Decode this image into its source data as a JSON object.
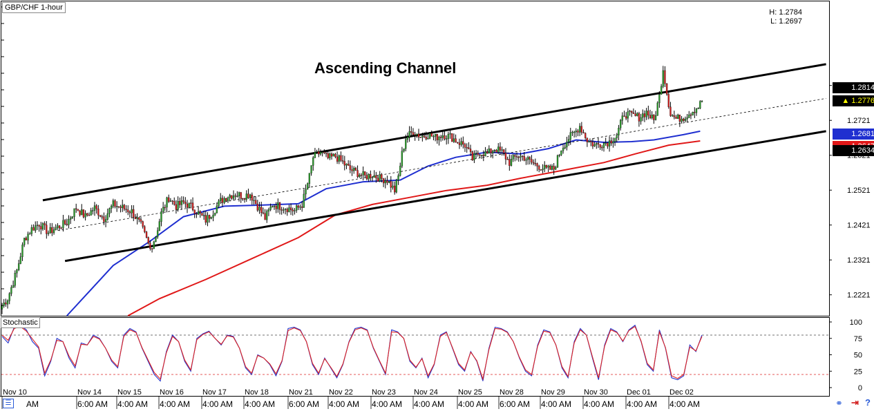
{
  "header": {
    "symbol_label": "GBP/CHF 1-hour",
    "high_label": "H: 1.2784",
    "low_label": "L: 1.2697",
    "annotation": "Ascending Channel"
  },
  "oscillator": {
    "label": "Stochastic"
  },
  "colors": {
    "bull": "#2e9e2e",
    "bear": "#d62020",
    "ma_fast": "#1f2fd0",
    "ma_slow": "#e01818",
    "stoch_k": "#2233cc",
    "stoch_d": "#dd2222",
    "channel": "#000000",
    "current_tag": "#000000"
  },
  "icons": [
    "grid-menu-icon",
    "link-icon",
    "arrow-right-icon",
    "help-icon"
  ],
  "chart_data": [
    {
      "type": "candlestick",
      "title": "GBP/CHF 1-hour",
      "ylim": [
        1.2161,
        1.3062
      ],
      "price_ticks": [
        "1.2221",
        "1.2321",
        "1.2421",
        "1.2521",
        "1.2621",
        "1.2721",
        "1.2821"
      ],
      "price_tags": [
        {
          "label": "1.2814",
          "value": 1.2814,
          "style": "dark"
        },
        {
          "label": "1.2776",
          "value": 1.2776,
          "style": "current"
        },
        {
          "label": "1.2681",
          "value": 1.2681,
          "style": "blue"
        },
        {
          "label": "1.2647",
          "value": 1.2647,
          "style": "red"
        },
        {
          "label": "1.2634",
          "value": 1.2634,
          "style": "dark"
        }
      ],
      "date_labels": [
        "Nov 10",
        "Nov 14",
        "Nov 15",
        "Nov 16",
        "Nov 17",
        "Nov 18",
        "Nov 21",
        "Nov 22",
        "Nov 23",
        "Nov 24",
        "Nov 25",
        "Nov 28",
        "Nov 29",
        "Nov 30",
        "Dec 01",
        "Dec 02"
      ],
      "time_labels": [
        "AM",
        "6:00 AM",
        "4:00 AM",
        "4:00 AM",
        "4:00 AM",
        "4:00 AM",
        "6:00 AM",
        "4:00 AM",
        "4:00 AM",
        "4:00 AM",
        "4:00 AM",
        "6:00 AM",
        "4:00 AM",
        "4:00 AM",
        "4:00 AM",
        "4:00 AM"
      ],
      "price_path": [
        [
          0,
          1.219
        ],
        [
          3,
          1.221
        ],
        [
          8,
          1.229
        ],
        [
          12,
          1.238
        ],
        [
          16,
          1.241
        ],
        [
          20,
          1.2425
        ],
        [
          25,
          1.24
        ],
        [
          30,
          1.2415
        ],
        [
          35,
          1.2428
        ],
        [
          40,
          1.247
        ],
        [
          45,
          1.2445
        ],
        [
          50,
          1.247
        ],
        [
          55,
          1.244
        ],
        [
          60,
          1.248
        ],
        [
          65,
          1.247
        ],
        [
          70,
          1.246
        ],
        [
          75,
          1.242
        ],
        [
          80,
          1.2352
        ],
        [
          83,
          1.239
        ],
        [
          86,
          1.2455
        ],
        [
          90,
          1.25
        ],
        [
          94,
          1.2475
        ],
        [
          98,
          1.2485
        ],
        [
          102,
          1.2475
        ],
        [
          106,
          1.2455
        ],
        [
          110,
          1.2435
        ],
        [
          114,
          1.246
        ],
        [
          118,
          1.249
        ],
        [
          122,
          1.2505
        ],
        [
          126,
          1.251
        ],
        [
          130,
          1.2505
        ],
        [
          134,
          1.251
        ],
        [
          138,
          1.2475
        ],
        [
          142,
          1.244
        ],
        [
          146,
          1.248
        ],
        [
          150,
          1.2475
        ],
        [
          154,
          1.247
        ],
        [
          158,
          1.2462
        ],
        [
          162,
          1.248
        ],
        [
          166,
          1.256
        ],
        [
          168,
          1.2615
        ],
        [
          172,
          1.263
        ],
        [
          176,
          1.2612
        ],
        [
          180,
          1.2618
        ],
        [
          184,
          1.26
        ],
        [
          188,
          1.258
        ],
        [
          192,
          1.257
        ],
        [
          196,
          1.256
        ],
        [
          200,
          1.2565
        ],
        [
          204,
          1.2555
        ],
        [
          208,
          1.255
        ],
        [
          212,
          1.252
        ],
        [
          214,
          1.256
        ],
        [
          216,
          1.2625
        ],
        [
          218,
          1.267
        ],
        [
          222,
          1.269
        ],
        [
          226,
          1.2675
        ],
        [
          230,
          1.268
        ],
        [
          234,
          1.2672
        ],
        [
          238,
          1.268
        ],
        [
          242,
          1.2675
        ],
        [
          246,
          1.266
        ],
        [
          250,
          1.265
        ],
        [
          254,
          1.261
        ],
        [
          258,
          1.263
        ],
        [
          262,
          1.2625
        ],
        [
          266,
          1.264
        ],
        [
          270,
          1.263
        ],
        [
          274,
          1.26
        ],
        [
          278,
          1.262
        ],
        [
          282,
          1.2615
        ],
        [
          286,
          1.26
        ],
        [
          290,
          1.259
        ],
        [
          294,
          1.258
        ],
        [
          298,
          1.2582
        ],
        [
          302,
          1.264
        ],
        [
          306,
          1.267
        ],
        [
          310,
          1.269
        ],
        [
          312,
          1.2705
        ],
        [
          316,
          1.2665
        ],
        [
          320,
          1.265
        ],
        [
          324,
          1.2655
        ],
        [
          328,
          1.266
        ],
        [
          332,
          1.268
        ],
        [
          336,
          1.274
        ],
        [
          340,
          1.2735
        ],
        [
          344,
          1.273
        ],
        [
          348,
          1.2745
        ],
        [
          352,
          1.272
        ],
        [
          355,
          1.279
        ],
        [
          357,
          1.287
        ],
        [
          359,
          1.28
        ],
        [
          361,
          1.274
        ],
        [
          364,
          1.2725
        ],
        [
          368,
          1.273
        ],
        [
          372,
          1.2745
        ],
        [
          376,
          1.276
        ],
        [
          378,
          1.2776
        ]
      ],
      "moving_averages": [
        {
          "name": "",
          "color_key": "ma_fast",
          "points": [
            [
              35,
              1.2161
            ],
            [
              60,
              1.2305
            ],
            [
              80,
              1.2375
            ],
            [
              98,
              1.2445
            ],
            [
              120,
              1.2475
            ],
            [
              140,
              1.2478
            ],
            [
              160,
              1.2482
            ],
            [
              175,
              1.2525
            ],
            [
              195,
              1.2545
            ],
            [
              215,
              1.255
            ],
            [
              230,
              1.259
            ],
            [
              245,
              1.2615
            ],
            [
              262,
              1.263
            ],
            [
              280,
              1.2625
            ],
            [
              295,
              1.264
            ],
            [
              310,
              1.2665
            ],
            [
              325,
              1.2658
            ],
            [
              340,
              1.266
            ],
            [
              352,
              1.2665
            ],
            [
              368,
              1.268
            ],
            [
              377,
              1.269
            ]
          ]
        },
        {
          "name": "",
          "color_key": "ma_slow",
          "points": [
            [
              68,
              1.2161
            ],
            [
              85,
              1.221
            ],
            [
              110,
              1.2265
            ],
            [
              135,
              1.2325
            ],
            [
              160,
              1.2385
            ],
            [
              180,
              1.245
            ],
            [
              200,
              1.248
            ],
            [
              220,
              1.25
            ],
            [
              240,
              1.252
            ],
            [
              262,
              1.2535
            ],
            [
              280,
              1.2555
            ],
            [
              295,
              1.257
            ],
            [
              310,
              1.2585
            ],
            [
              325,
              1.26
            ],
            [
              342,
              1.2625
            ],
            [
              360,
              1.265
            ],
            [
              377,
              1.2662
            ]
          ]
        }
      ],
      "channel": {
        "upper": [
          [
            22,
            1.2492
          ],
          [
            445,
            1.2882
          ]
        ],
        "lower": [
          [
            34,
            1.2318
          ],
          [
            445,
            1.269
          ]
        ],
        "mid": [
          [
            30,
            1.2405
          ],
          [
            445,
            1.2784
          ]
        ]
      }
    },
    {
      "type": "line",
      "title": "Stochastic",
      "ylim": [
        0,
        100
      ],
      "y_ticks": [
        "0",
        "25",
        "50",
        "75",
        "100"
      ],
      "levels": [
        80,
        20
      ],
      "series": [
        {
          "name": "",
          "color_key": "stoch_k",
          "values": [
            78,
            68,
            92,
            95,
            88,
            70,
            60,
            18,
            40,
            75,
            70,
            45,
            30,
            68,
            65,
            80,
            75,
            60,
            40,
            30,
            80,
            90,
            85,
            60,
            40,
            20,
            10,
            55,
            80,
            70,
            40,
            25,
            75,
            82,
            86,
            75,
            65,
            80,
            78,
            60,
            30,
            20,
            50,
            45,
            35,
            18,
            40,
            90,
            92,
            88,
            70,
            35,
            20,
            45,
            30,
            15,
            35,
            70,
            90,
            92,
            88,
            60,
            40,
            20,
            88,
            85,
            75,
            40,
            30,
            45,
            15,
            35,
            80,
            85,
            60,
            35,
            25,
            55,
            40,
            10,
            60,
            92,
            90,
            85,
            70,
            45,
            25,
            18,
            65,
            88,
            85,
            65,
            30,
            15,
            70,
            90,
            80,
            45,
            12,
            65,
            90,
            85,
            70,
            88,
            95,
            70,
            35,
            25,
            88,
            60,
            15,
            12,
            18,
            65,
            55,
            80
          ]
        },
        {
          "name": "",
          "color_key": "stoch_d",
          "values": [
            80,
            72,
            90,
            93,
            86,
            74,
            62,
            22,
            42,
            72,
            70,
            48,
            33,
            66,
            65,
            78,
            74,
            60,
            42,
            32,
            78,
            88,
            84,
            61,
            42,
            23,
            13,
            53,
            78,
            70,
            42,
            27,
            73,
            81,
            85,
            75,
            66,
            79,
            77,
            60,
            32,
            22,
            49,
            45,
            36,
            21,
            41,
            87,
            91,
            87,
            70,
            37,
            22,
            44,
            31,
            17,
            36,
            69,
            88,
            91,
            87,
            61,
            41,
            22,
            85,
            84,
            75,
            42,
            31,
            44,
            18,
            36,
            78,
            84,
            61,
            37,
            27,
            54,
            41,
            13,
            58,
            90,
            89,
            84,
            70,
            46,
            27,
            20,
            63,
            86,
            84,
            65,
            32,
            17,
            68,
            88,
            80,
            47,
            15,
            63,
            88,
            84,
            71,
            87,
            93,
            71,
            37,
            27,
            85,
            61,
            18,
            14,
            20,
            62,
            56,
            78
          ]
        }
      ]
    }
  ]
}
